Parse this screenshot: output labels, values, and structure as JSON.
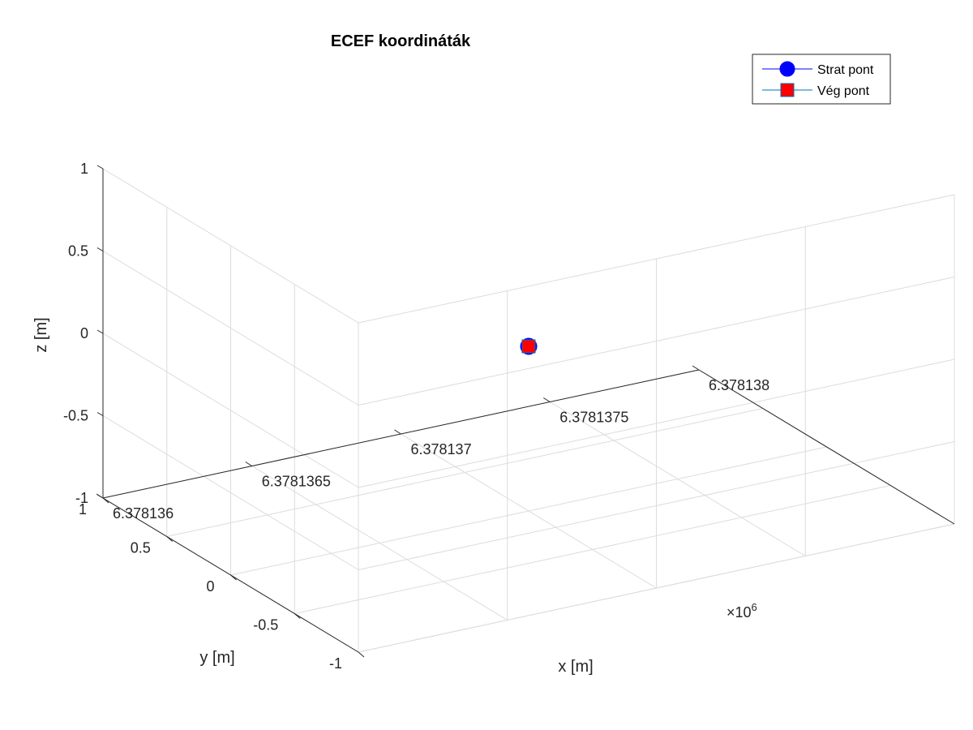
{
  "chart_data": {
    "type": "scatter",
    "title": "ECEF koordináták",
    "xlabel": "x [m]",
    "ylabel": "y [m]",
    "zlabel": "z [m]",
    "x_exponent_label": "×10",
    "x_exponent_power": "6",
    "x_ticks": [
      "6.378136",
      "6.3781365",
      "6.378137",
      "6.3781375",
      "6.378138"
    ],
    "y_ticks": [
      "-1",
      "-0.5",
      "0",
      "0.5",
      "1"
    ],
    "z_ticks": [
      "-1",
      "-0.5",
      "0",
      "0.5",
      "1"
    ],
    "xlim": [
      6378136,
      6378138
    ],
    "ylim": [
      -1,
      1
    ],
    "zlim": [
      -1,
      1
    ],
    "grid": true,
    "legend_position": "top-right",
    "series": [
      {
        "name": "Strat pont",
        "marker": "circle",
        "color": "#0000ff",
        "x": 6378137,
        "y": 0,
        "z": 0
      },
      {
        "name": "Vég pont",
        "marker": "square",
        "color": "#ff0000",
        "x": 6378137,
        "y": 0,
        "z": 0
      }
    ]
  }
}
